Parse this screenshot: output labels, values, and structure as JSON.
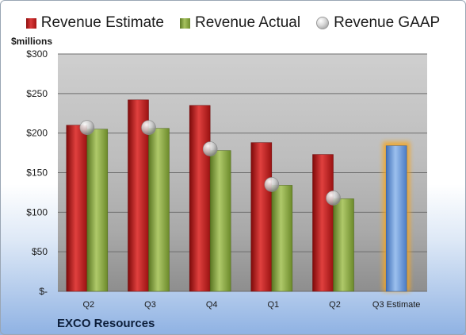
{
  "company": "EXCO Resources",
  "chart_data": {
    "type": "bar",
    "unit_label": "$millions",
    "categories": [
      "Q2",
      "Q3",
      "Q4",
      "Q1",
      "Q2",
      "Q3 Estimate"
    ],
    "y_ticks": [
      "$-",
      "$50",
      "$100",
      "$150",
      "$200",
      "$250",
      "$300"
    ],
    "ylim": [
      0,
      300
    ],
    "grid": true,
    "legend_position": "top",
    "series": [
      {
        "name": "Revenue Estimate",
        "kind": "bar",
        "color": "#c0262a",
        "values": [
          210,
          242,
          235,
          188,
          173,
          null
        ]
      },
      {
        "name": "Revenue Actual",
        "kind": "bar",
        "color": "#8dae4a",
        "values": [
          205,
          206,
          178,
          134,
          117,
          null
        ]
      },
      {
        "name": "Revenue GAAP",
        "kind": "marker",
        "color": "#c8c8c8",
        "values": [
          207,
          207,
          180,
          135,
          118,
          null
        ]
      },
      {
        "name": "Q3 Estimate",
        "kind": "bar",
        "color": "#6f9bd8",
        "values": [
          null,
          null,
          null,
          null,
          null,
          184
        ],
        "highlight": true
      }
    ]
  }
}
